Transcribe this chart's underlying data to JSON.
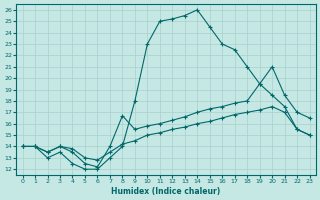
{
  "title": "",
  "xlabel": "Humidex (Indice chaleur)",
  "ylabel": "",
  "bg_color": "#c5e8e5",
  "grid_color": "#a8d0cc",
  "line_color": "#006868",
  "ylim": [
    11.5,
    26.5
  ],
  "xlim": [
    -0.5,
    23.5
  ],
  "yticks": [
    12,
    13,
    14,
    15,
    16,
    17,
    18,
    19,
    20,
    21,
    22,
    23,
    24,
    25,
    26
  ],
  "xticks": [
    0,
    1,
    2,
    3,
    4,
    5,
    6,
    7,
    8,
    9,
    10,
    11,
    12,
    13,
    14,
    15,
    16,
    17,
    18,
    19,
    20,
    21,
    22,
    23
  ],
  "curve1_x": [
    0,
    1,
    2,
    3,
    4,
    5,
    6,
    7,
    8,
    9,
    10,
    11,
    12,
    13,
    14,
    15,
    16,
    17,
    18,
    19,
    20,
    21,
    22,
    23
  ],
  "curve1_y": [
    14.0,
    14.0,
    13.0,
    13.5,
    12.5,
    12.0,
    12.0,
    13.0,
    14.0,
    18.0,
    23.0,
    25.0,
    25.2,
    25.5,
    26.0,
    24.5,
    23.0,
    22.5,
    21.0,
    19.5,
    21.0,
    18.5,
    17.0,
    16.5
  ],
  "curve2_x": [
    0,
    1,
    2,
    3,
    4,
    5,
    6,
    7,
    8,
    9,
    10,
    11,
    12,
    13,
    14,
    15,
    16,
    17,
    18,
    19,
    20,
    21,
    22,
    23
  ],
  "curve2_y": [
    14.0,
    14.0,
    13.5,
    14.0,
    13.5,
    12.5,
    12.2,
    14.0,
    16.7,
    15.5,
    15.8,
    16.0,
    16.3,
    16.6,
    17.0,
    17.3,
    17.5,
    17.8,
    18.0,
    19.5,
    18.5,
    17.5,
    15.5,
    15.0
  ],
  "curve3_x": [
    0,
    1,
    2,
    3,
    4,
    5,
    6,
    7,
    8,
    9,
    10,
    11,
    12,
    13,
    14,
    15,
    16,
    17,
    18,
    19,
    20,
    21,
    22,
    23
  ],
  "curve3_y": [
    14.0,
    14.0,
    13.5,
    14.0,
    13.8,
    13.0,
    12.8,
    13.5,
    14.2,
    14.5,
    15.0,
    15.2,
    15.5,
    15.7,
    16.0,
    16.2,
    16.5,
    16.8,
    17.0,
    17.2,
    17.5,
    17.0,
    15.5,
    15.0
  ]
}
